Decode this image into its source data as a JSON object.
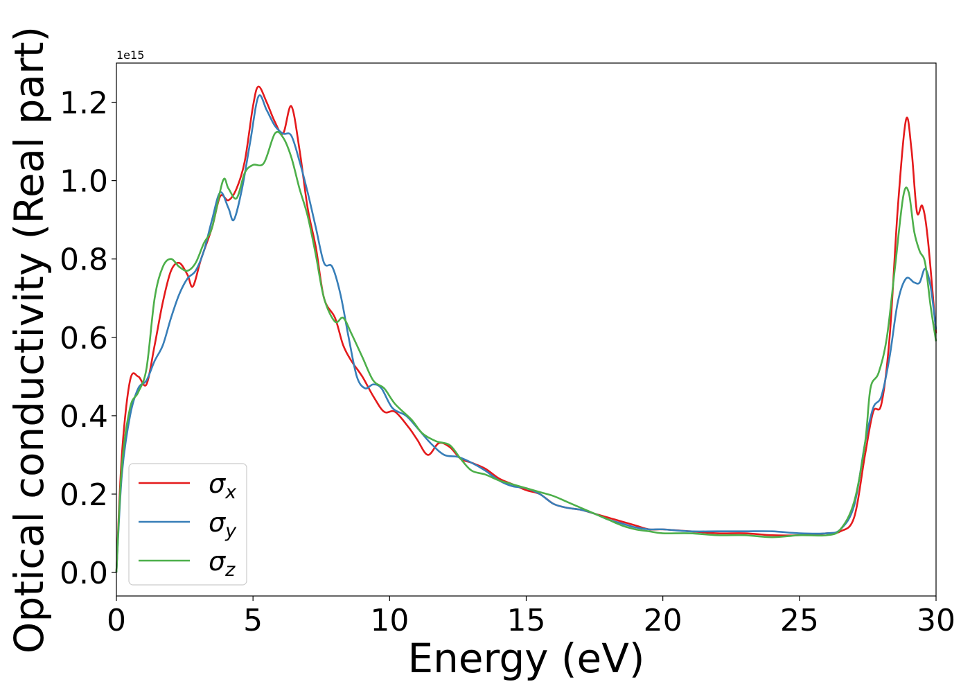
{
  "chart_data": {
    "type": "line",
    "xlabel": "Energy (eV)",
    "ylabel": "Optical conductivity (Real part)",
    "y_offset_label": "1e15",
    "xlim": [
      0,
      30
    ],
    "ylim": [
      -0.06,
      1.3
    ],
    "x_ticks": [
      0,
      5,
      10,
      15,
      20,
      25,
      30
    ],
    "y_ticks": [
      0.0,
      0.2,
      0.4,
      0.6,
      0.8,
      1.0,
      1.2
    ],
    "x_tick_labels": [
      "0",
      "5",
      "10",
      "15",
      "20",
      "25",
      "30"
    ],
    "y_tick_labels": [
      "0.0",
      "0.2",
      "0.4",
      "0.6",
      "0.8",
      "1.0",
      "1.2"
    ],
    "grid": false,
    "legend_position": "lower-left",
    "series": [
      {
        "name": "σx",
        "symbol": "σ",
        "subscript": "x",
        "color": "#e41a1c",
        "points": [
          [
            0,
            0.0
          ],
          [
            0.2,
            0.3
          ],
          [
            0.5,
            0.49
          ],
          [
            0.8,
            0.5
          ],
          [
            1.1,
            0.48
          ],
          [
            1.4,
            0.58
          ],
          [
            1.7,
            0.69
          ],
          [
            2.0,
            0.77
          ],
          [
            2.3,
            0.79
          ],
          [
            2.6,
            0.76
          ],
          [
            2.8,
            0.73
          ],
          [
            3.1,
            0.8
          ],
          [
            3.5,
            0.88
          ],
          [
            3.8,
            0.96
          ],
          [
            4.1,
            0.95
          ],
          [
            4.4,
            0.98
          ],
          [
            4.7,
            1.05
          ],
          [
            5.0,
            1.19
          ],
          [
            5.2,
            1.24
          ],
          [
            5.5,
            1.2
          ],
          [
            5.8,
            1.15
          ],
          [
            6.1,
            1.12
          ],
          [
            6.4,
            1.19
          ],
          [
            6.7,
            1.08
          ],
          [
            7.0,
            0.93
          ],
          [
            7.3,
            0.83
          ],
          [
            7.6,
            0.7
          ],
          [
            8.0,
            0.65
          ],
          [
            8.3,
            0.58
          ],
          [
            8.6,
            0.54
          ],
          [
            9.0,
            0.5
          ],
          [
            9.4,
            0.45
          ],
          [
            9.8,
            0.41
          ],
          [
            10.2,
            0.41
          ],
          [
            10.7,
            0.37
          ],
          [
            11.0,
            0.34
          ],
          [
            11.4,
            0.3
          ],
          [
            11.8,
            0.33
          ],
          [
            12.2,
            0.32
          ],
          [
            12.6,
            0.29
          ],
          [
            13.0,
            0.28
          ],
          [
            13.5,
            0.265
          ],
          [
            14.0,
            0.24
          ],
          [
            14.5,
            0.225
          ],
          [
            15.0,
            0.21
          ],
          [
            15.5,
            0.2
          ],
          [
            16.0,
            0.175
          ],
          [
            16.5,
            0.165
          ],
          [
            17.0,
            0.16
          ],
          [
            17.5,
            0.15
          ],
          [
            18.0,
            0.14
          ],
          [
            18.5,
            0.13
          ],
          [
            19.0,
            0.12
          ],
          [
            19.5,
            0.11
          ],
          [
            20.0,
            0.11
          ],
          [
            21.0,
            0.105
          ],
          [
            22.0,
            0.1
          ],
          [
            23.0,
            0.1
          ],
          [
            24.0,
            0.095
          ],
          [
            25.0,
            0.095
          ],
          [
            26.0,
            0.1
          ],
          [
            26.5,
            0.105
          ],
          [
            27.0,
            0.14
          ],
          [
            27.4,
            0.3
          ],
          [
            27.7,
            0.41
          ],
          [
            28.0,
            0.43
          ],
          [
            28.3,
            0.6
          ],
          [
            28.6,
            0.93
          ],
          [
            28.9,
            1.155
          ],
          [
            29.1,
            1.08
          ],
          [
            29.3,
            0.92
          ],
          [
            29.5,
            0.935
          ],
          [
            29.7,
            0.85
          ],
          [
            30.0,
            0.61
          ]
        ]
      },
      {
        "name": "σy",
        "symbol": "σ",
        "subscript": "y",
        "color": "#377eb8",
        "points": [
          [
            0,
            0.0
          ],
          [
            0.2,
            0.25
          ],
          [
            0.5,
            0.4
          ],
          [
            0.8,
            0.47
          ],
          [
            1.1,
            0.49
          ],
          [
            1.4,
            0.54
          ],
          [
            1.7,
            0.58
          ],
          [
            2.0,
            0.65
          ],
          [
            2.3,
            0.71
          ],
          [
            2.6,
            0.75
          ],
          [
            2.9,
            0.77
          ],
          [
            3.2,
            0.82
          ],
          [
            3.5,
            0.9
          ],
          [
            3.8,
            0.97
          ],
          [
            4.1,
            0.93
          ],
          [
            4.3,
            0.9
          ],
          [
            4.6,
            0.98
          ],
          [
            4.9,
            1.1
          ],
          [
            5.2,
            1.215
          ],
          [
            5.5,
            1.18
          ],
          [
            5.8,
            1.14
          ],
          [
            6.1,
            1.12
          ],
          [
            6.4,
            1.115
          ],
          [
            6.7,
            1.05
          ],
          [
            7.0,
            0.97
          ],
          [
            7.3,
            0.88
          ],
          [
            7.6,
            0.79
          ],
          [
            7.9,
            0.78
          ],
          [
            8.2,
            0.71
          ],
          [
            8.5,
            0.6
          ],
          [
            8.8,
            0.5
          ],
          [
            9.1,
            0.47
          ],
          [
            9.4,
            0.48
          ],
          [
            9.7,
            0.47
          ],
          [
            10.1,
            0.42
          ],
          [
            10.6,
            0.4
          ],
          [
            11.0,
            0.37
          ],
          [
            11.5,
            0.33
          ],
          [
            12.0,
            0.3
          ],
          [
            12.5,
            0.295
          ],
          [
            13.0,
            0.28
          ],
          [
            13.5,
            0.26
          ],
          [
            14.0,
            0.235
          ],
          [
            14.5,
            0.22
          ],
          [
            15.0,
            0.215
          ],
          [
            15.5,
            0.2
          ],
          [
            16.0,
            0.175
          ],
          [
            16.5,
            0.165
          ],
          [
            17.0,
            0.16
          ],
          [
            17.5,
            0.15
          ],
          [
            18.0,
            0.135
          ],
          [
            18.5,
            0.125
          ],
          [
            19.0,
            0.115
          ],
          [
            19.5,
            0.11
          ],
          [
            20.0,
            0.11
          ],
          [
            21.0,
            0.105
          ],
          [
            22.0,
            0.105
          ],
          [
            23.0,
            0.105
          ],
          [
            24.0,
            0.105
          ],
          [
            25.0,
            0.1
          ],
          [
            26.0,
            0.1
          ],
          [
            26.5,
            0.11
          ],
          [
            27.0,
            0.17
          ],
          [
            27.4,
            0.33
          ],
          [
            27.7,
            0.42
          ],
          [
            28.0,
            0.45
          ],
          [
            28.3,
            0.55
          ],
          [
            28.6,
            0.69
          ],
          [
            28.9,
            0.75
          ],
          [
            29.2,
            0.74
          ],
          [
            29.4,
            0.74
          ],
          [
            29.6,
            0.775
          ],
          [
            29.8,
            0.73
          ],
          [
            30.0,
            0.62
          ]
        ]
      },
      {
        "name": "σz",
        "symbol": "σ",
        "subscript": "z",
        "color": "#4daf4a",
        "points": [
          [
            0,
            0.0
          ],
          [
            0.2,
            0.27
          ],
          [
            0.5,
            0.42
          ],
          [
            0.8,
            0.46
          ],
          [
            1.1,
            0.52
          ],
          [
            1.4,
            0.7
          ],
          [
            1.7,
            0.78
          ],
          [
            2.0,
            0.8
          ],
          [
            2.3,
            0.78
          ],
          [
            2.6,
            0.77
          ],
          [
            2.9,
            0.79
          ],
          [
            3.2,
            0.84
          ],
          [
            3.5,
            0.88
          ],
          [
            3.9,
            1.0
          ],
          [
            4.1,
            0.98
          ],
          [
            4.4,
            0.955
          ],
          [
            4.7,
            1.02
          ],
          [
            5.0,
            1.04
          ],
          [
            5.4,
            1.045
          ],
          [
            5.8,
            1.12
          ],
          [
            6.1,
            1.11
          ],
          [
            6.4,
            1.06
          ],
          [
            6.7,
            0.98
          ],
          [
            7.0,
            0.91
          ],
          [
            7.3,
            0.81
          ],
          [
            7.6,
            0.7
          ],
          [
            8.0,
            0.64
          ],
          [
            8.3,
            0.65
          ],
          [
            8.6,
            0.61
          ],
          [
            9.0,
            0.55
          ],
          [
            9.4,
            0.49
          ],
          [
            9.8,
            0.47
          ],
          [
            10.2,
            0.43
          ],
          [
            10.8,
            0.39
          ],
          [
            11.2,
            0.355
          ],
          [
            11.7,
            0.335
          ],
          [
            12.2,
            0.325
          ],
          [
            12.6,
            0.29
          ],
          [
            13.0,
            0.26
          ],
          [
            13.5,
            0.25
          ],
          [
            14.0,
            0.235
          ],
          [
            14.5,
            0.225
          ],
          [
            15.0,
            0.215
          ],
          [
            15.5,
            0.205
          ],
          [
            16.0,
            0.195
          ],
          [
            16.5,
            0.18
          ],
          [
            17.0,
            0.165
          ],
          [
            17.5,
            0.15
          ],
          [
            18.0,
            0.135
          ],
          [
            18.5,
            0.12
          ],
          [
            19.0,
            0.11
          ],
          [
            19.5,
            0.105
          ],
          [
            20.0,
            0.1
          ],
          [
            21.0,
            0.1
          ],
          [
            22.0,
            0.095
          ],
          [
            23.0,
            0.095
          ],
          [
            24.0,
            0.09
          ],
          [
            25.0,
            0.095
          ],
          [
            26.0,
            0.095
          ],
          [
            26.5,
            0.11
          ],
          [
            27.0,
            0.18
          ],
          [
            27.4,
            0.33
          ],
          [
            27.6,
            0.47
          ],
          [
            27.9,
            0.51
          ],
          [
            28.2,
            0.6
          ],
          [
            28.5,
            0.78
          ],
          [
            28.8,
            0.96
          ],
          [
            29.0,
            0.97
          ],
          [
            29.2,
            0.87
          ],
          [
            29.4,
            0.82
          ],
          [
            29.6,
            0.79
          ],
          [
            29.8,
            0.68
          ],
          [
            30.0,
            0.59
          ]
        ]
      }
    ]
  }
}
